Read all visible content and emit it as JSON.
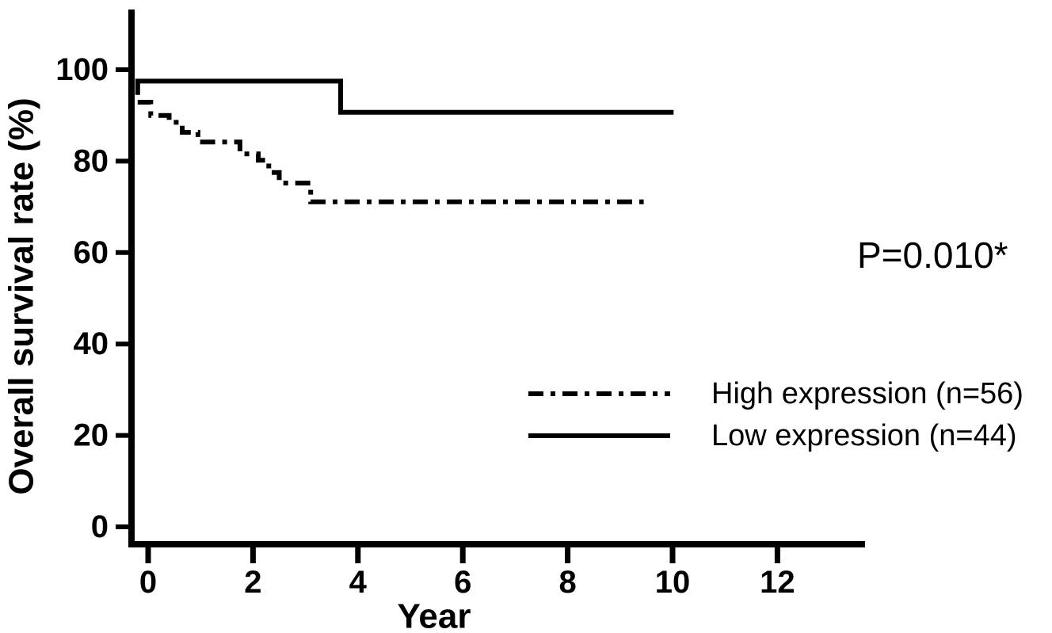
{
  "figure": {
    "kind": "kaplan-meier-survival-plot",
    "background_color": "#ffffff",
    "line_color": "#000000"
  },
  "chart_data": {
    "type": "line",
    "subtype": "kaplan-meier-step",
    "title": "",
    "xlabel": "Year",
    "ylabel": "Overall survival rate (%)",
    "x_ticks": [
      0,
      2,
      4,
      6,
      8,
      10,
      12
    ],
    "y_ticks": [
      0,
      20,
      40,
      60,
      80,
      100
    ],
    "xlim": [
      -0.38,
      13.67
    ],
    "ylim": [
      0,
      113
    ],
    "grid": false,
    "legend_position": "center-right",
    "annotation": "P=0.010*",
    "series": [
      {
        "name": "High expression (n=56)",
        "line_style": "dash-dot",
        "color": "#000000",
        "points": [
          [
            -0.2,
            92.9
          ],
          [
            0.05,
            92.9
          ],
          [
            0.05,
            90.0
          ],
          [
            0.4,
            90.0
          ],
          [
            0.4,
            88.5
          ],
          [
            0.65,
            88.5
          ],
          [
            0.65,
            86.3
          ],
          [
            0.95,
            86.3
          ],
          [
            0.95,
            84.2
          ],
          [
            1.75,
            84.2
          ],
          [
            1.75,
            81.6
          ],
          [
            2.1,
            81.6
          ],
          [
            2.1,
            80.2
          ],
          [
            2.3,
            80.2
          ],
          [
            2.3,
            77.5
          ],
          [
            2.5,
            77.5
          ],
          [
            2.5,
            75.2
          ],
          [
            3.1,
            75.2
          ],
          [
            3.1,
            71.1
          ],
          [
            9.45,
            71.1
          ]
        ]
      },
      {
        "name": "Low expression (n=44)",
        "line_style": "solid",
        "color": "#000000",
        "points": [
          [
            -0.2,
            94.5
          ],
          [
            -0.2,
            97.5
          ],
          [
            3.67,
            97.5
          ],
          [
            3.67,
            90.7
          ],
          [
            10.02,
            90.7
          ]
        ]
      }
    ]
  }
}
